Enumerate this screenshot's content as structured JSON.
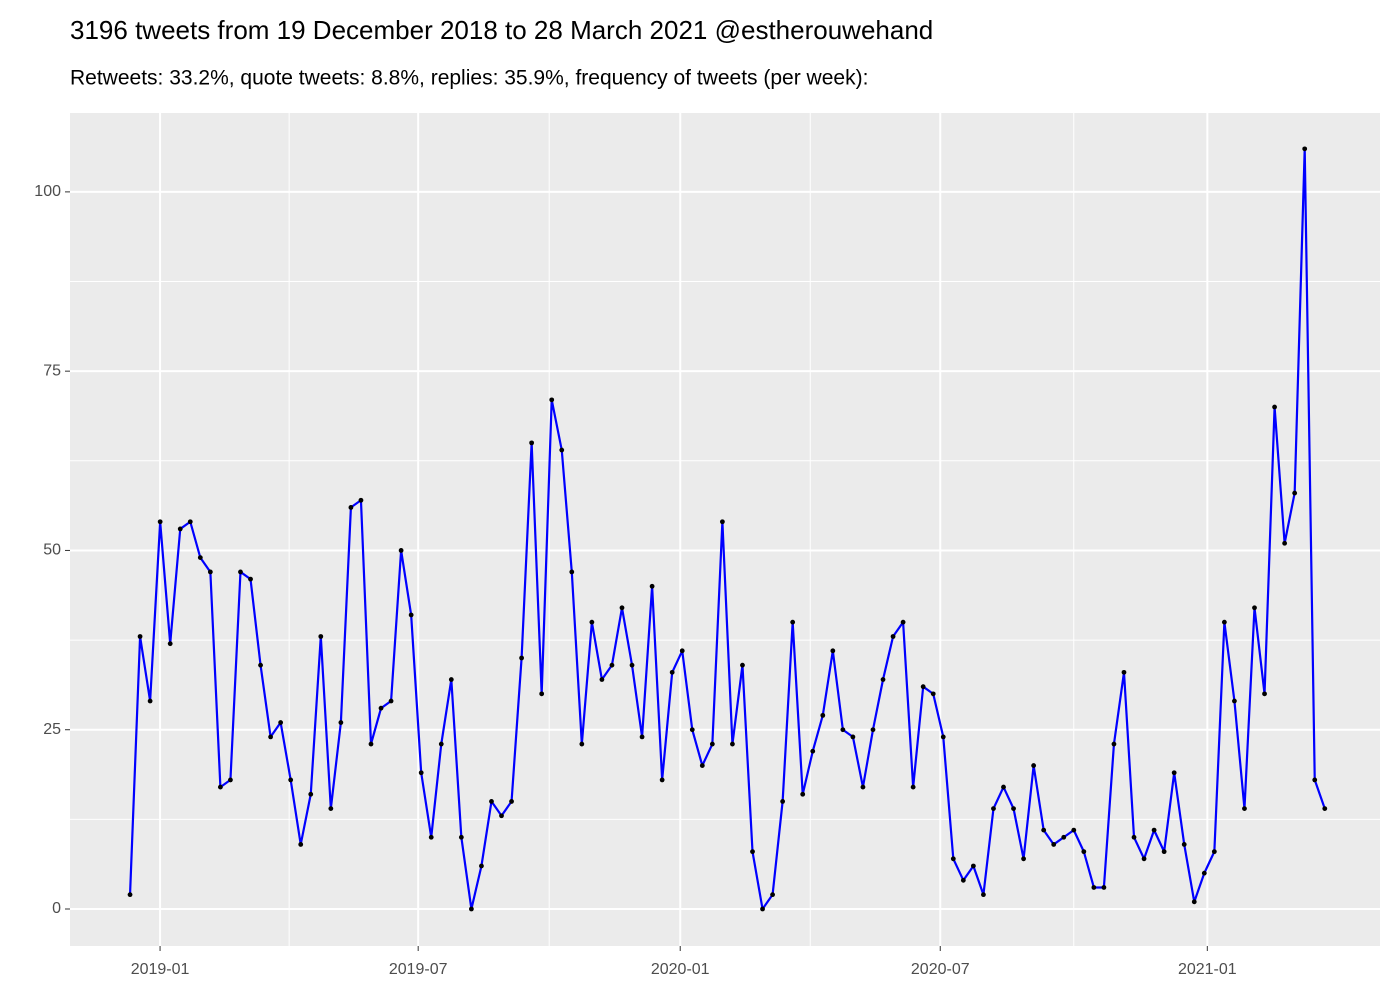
{
  "chart_data": {
    "type": "line",
    "title": "3196 tweets from 19 December 2018 to 28 March 2021 @estherouwehand",
    "subtitle": "Retweets: 33.2%, quote tweets: 8.8%, replies: 35.9%, frequency of tweets (per week):",
    "values": [
      2,
      38,
      29,
      54,
      37,
      53,
      54,
      49,
      47,
      17,
      18,
      47,
      46,
      34,
      24,
      26,
      18,
      9,
      16,
      38,
      14,
      26,
      56,
      57,
      23,
      28,
      29,
      50,
      41,
      19,
      10,
      23,
      32,
      10,
      0,
      6,
      15,
      13,
      15,
      35,
      65,
      30,
      71,
      64,
      47,
      23,
      40,
      32,
      34,
      42,
      34,
      24,
      45,
      18,
      33,
      36,
      25,
      20,
      23,
      54,
      23,
      34,
      8,
      0,
      2,
      15,
      40,
      16,
      22,
      27,
      36,
      25,
      24,
      17,
      25,
      32,
      38,
      40,
      17,
      31,
      30,
      24,
      7,
      4,
      6,
      2,
      14,
      17,
      14,
      7,
      20,
      11,
      9,
      10,
      11,
      8,
      3,
      3,
      23,
      33,
      10,
      7,
      11,
      8,
      19,
      9,
      1,
      5,
      8,
      40,
      29,
      14,
      42,
      30,
      70,
      51,
      58,
      106,
      18,
      14
    ],
    "color": "#0000ff",
    "point_color": "#000000",
    "xlim": [
      -5.98,
      124.5
    ],
    "xticks": [
      {
        "value": 2.99,
        "label": "2019-01"
      },
      {
        "value": 28.7,
        "label": "2019-07"
      },
      {
        "value": 54.8,
        "label": "2020-01"
      },
      {
        "value": 80.7,
        "label": "2020-07"
      },
      {
        "value": 107.3,
        "label": "2021-01"
      }
    ],
    "ylim": [
      -5.16,
      111.0
    ],
    "yticks": [
      0,
      25,
      50,
      75,
      100
    ],
    "grid": true
  }
}
